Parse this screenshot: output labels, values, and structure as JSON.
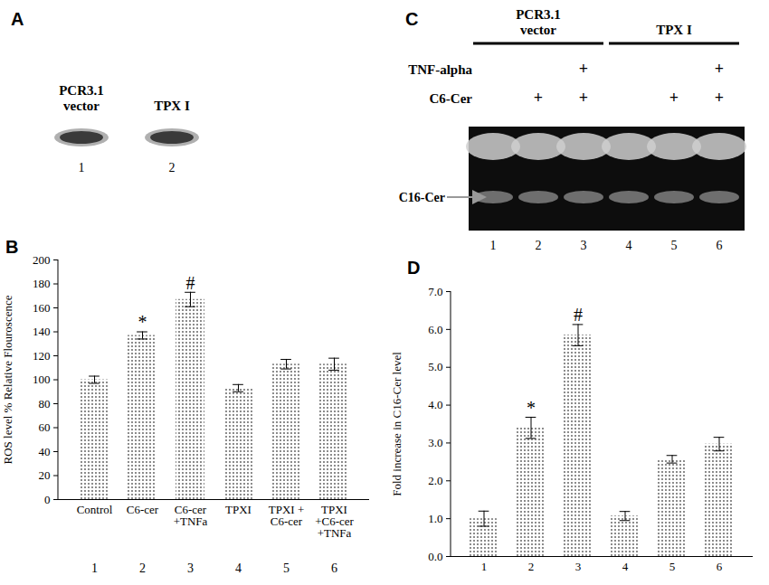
{
  "chart_data": [
    {
      "type": "bar",
      "title": "B",
      "y_label": "ROS level % Relative Flouroscence",
      "categories": [
        "Control",
        "C6-cer",
        "C6-cer\n+TNFa",
        "TPXI",
        "TPXI +\nC6-cer",
        "TPXI\n+C6-cer\n+TNFa"
      ],
      "category_numbers": [
        1,
        2,
        3,
        4,
        5,
        6
      ],
      "values": [
        100,
        137,
        167,
        93,
        113,
        113
      ],
      "errors": [
        3,
        3,
        6,
        3,
        4,
        5
      ],
      "significance": [
        null,
        "*",
        "#",
        null,
        null,
        null
      ],
      "color": "#555555",
      "ylim": [
        0,
        200
      ],
      "yticks": [
        0,
        20,
        40,
        60,
        80,
        100,
        120,
        140,
        160,
        180,
        200
      ]
    },
    {
      "type": "bar",
      "title": "D",
      "y_label": "Fold increase in C16-Cer level",
      "categories": [
        "1",
        "2",
        "3",
        "4",
        "5",
        "6"
      ],
      "values": [
        1.0,
        3.4,
        5.85,
        1.07,
        2.57,
        2.97
      ],
      "errors": [
        0.2,
        0.28,
        0.28,
        0.12,
        0.1,
        0.18
      ],
      "significance": [
        null,
        "*",
        "#",
        null,
        null,
        null
      ],
      "color": "#555555",
      "ylim": [
        0,
        7
      ],
      "yticks": [
        0,
        1,
        2,
        3,
        4,
        5,
        6,
        7
      ]
    }
  ],
  "blots": [
    {
      "title": "A",
      "lanes": [
        "PCR3.1\nvector",
        "TPX I"
      ],
      "lane_numbers": [
        1,
        2
      ]
    },
    {
      "title": "C",
      "groups": [
        {
          "label": "PCR3.1\nvector",
          "lanes": [
            1,
            2,
            3
          ]
        },
        {
          "label": "TPX I",
          "lanes": [
            4,
            5,
            6
          ]
        }
      ],
      "treatments": [
        {
          "label": "TNF-alpha",
          "marks": [
            null,
            null,
            "+",
            null,
            null,
            "+"
          ]
        },
        {
          "label": "C6-Cer",
          "marks": [
            null,
            "+",
            "+",
            null,
            "+",
            "+"
          ]
        }
      ],
      "band_label": "C16-Cer",
      "lane_numbers": [
        1,
        2,
        3,
        4,
        5,
        6
      ]
    }
  ]
}
